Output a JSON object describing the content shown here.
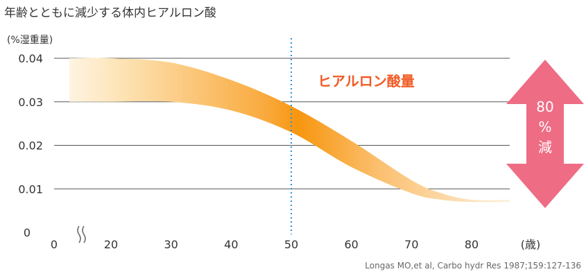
{
  "page": {
    "title": "年齢とともに減少する体内ヒアルロン酸",
    "source": "Longas MO,et al, Carbo hydr Res 1987;159:127-136"
  },
  "chart_data": {
    "type": "area",
    "title": "年齢とともに減少する体内ヒアルロン酸",
    "ylabel": "(%湿重量)",
    "xlabel": "(歳)",
    "ylim": [
      0,
      0.04
    ],
    "y_ticks": [
      "0",
      "0.01",
      "0.02",
      "0.03",
      "0.04"
    ],
    "x_ticks": [
      "0",
      "20",
      "30",
      "40",
      "50",
      "60",
      "70",
      "80"
    ],
    "grid": true,
    "axis_break": true,
    "reference_line": {
      "x": 50,
      "style": "dotted"
    },
    "series": [
      {
        "name": "ヒアルロン酸量",
        "x": [
          0,
          20,
          30,
          40,
          50,
          60,
          70,
          75,
          80
        ],
        "upper": [
          0.04,
          0.04,
          0.039,
          0.035,
          0.029,
          0.021,
          0.012,
          0.009,
          0.0075
        ],
        "lower": [
          0.03,
          0.03,
          0.03,
          0.028,
          0.023,
          0.015,
          0.009,
          0.0075,
          0.007
        ]
      }
    ],
    "annotation": {
      "value": "80",
      "unit": "%",
      "word": "減"
    },
    "colors": {
      "band_start": "#fef4e2",
      "band_peak": "#f7960f",
      "band_end": "#fdf1de",
      "arrow": "#ee6c84",
      "series_label": "#f15a24",
      "reference_line": "#2b8fd6"
    }
  }
}
